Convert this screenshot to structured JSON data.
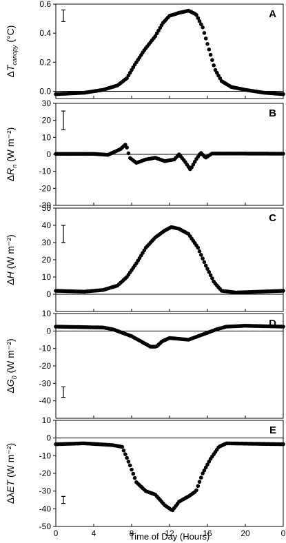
{
  "chart_data": [
    {
      "type": "scatter",
      "panel_label": "A",
      "ylabel": {
        "prefix": "Δ",
        "symbol": "T",
        "sub": "canopy",
        "unit": " (°C)"
      },
      "ylim": [
        -0.05,
        0.6
      ],
      "yticks": [
        "0.0",
        "0.2",
        "0.4",
        "0.6"
      ],
      "ytick_values": [
        0,
        0.2,
        0.4,
        0.6
      ],
      "error_bar": {
        "x": 0.8,
        "center": 0.52,
        "half": 0.04
      },
      "series": [
        {
          "x_range": [
            0,
            24
          ],
          "keypoints": [
            [
              0,
              -0.02
            ],
            [
              3,
              -0.01
            ],
            [
              5,
              0.01
            ],
            [
              6.5,
              0.04
            ],
            [
              7.5,
              0.09
            ],
            [
              8.3,
              0.18
            ],
            [
              9.3,
              0.28
            ],
            [
              10.5,
              0.38
            ],
            [
              11.3,
              0.47
            ],
            [
              12,
              0.52
            ],
            [
              13,
              0.54
            ],
            [
              14,
              0.555
            ],
            [
              14.8,
              0.53
            ],
            [
              15.5,
              0.44
            ],
            [
              16.2,
              0.28
            ],
            [
              16.8,
              0.15
            ],
            [
              17.5,
              0.07
            ],
            [
              18.5,
              0.03
            ],
            [
              20,
              0.01
            ],
            [
              22,
              -0.01
            ],
            [
              24,
              -0.02
            ]
          ]
        }
      ]
    },
    {
      "type": "scatter",
      "panel_label": "B",
      "ylabel": {
        "prefix": "Δ",
        "symbol": "R",
        "sub": "n",
        "unit": " (W m⁻²)"
      },
      "ylim": [
        -30,
        30
      ],
      "yticks": [
        "-30",
        "-20",
        "-10",
        "0",
        "10",
        "20",
        "30"
      ],
      "ytick_values": [
        -30,
        -20,
        -10,
        0,
        10,
        20,
        30
      ],
      "error_bar": {
        "x": 0.8,
        "center": 20,
        "half": 5.5
      },
      "series": [
        {
          "x_range": [
            0,
            24
          ],
          "keypoints": [
            [
              0,
              0.3
            ],
            [
              4,
              0.3
            ],
            [
              5.5,
              -0.3
            ],
            [
              6,
              1
            ],
            [
              6.8,
              3
            ],
            [
              7.4,
              6
            ],
            [
              7.8,
              -2
            ],
            [
              8.5,
              -5
            ],
            [
              9.5,
              -3
            ],
            [
              10.5,
              -2
            ],
            [
              11.5,
              -4
            ],
            [
              12.5,
              -3
            ],
            [
              13,
              0
            ],
            [
              13.6,
              -4
            ],
            [
              14.2,
              -9
            ],
            [
              14.8,
              -3
            ],
            [
              15.3,
              1
            ],
            [
              15.8,
              -2
            ],
            [
              16.5,
              0.5
            ],
            [
              18,
              0.5
            ],
            [
              24,
              0.4
            ]
          ]
        }
      ]
    },
    {
      "type": "scatter",
      "panel_label": "C",
      "ylabel": {
        "prefix": "Δ",
        "symbol": "H",
        "sub": "",
        "unit": " (W m⁻²)"
      },
      "ylim": [
        -10,
        50
      ],
      "yticks": [
        "0",
        "10",
        "20",
        "30",
        "40",
        "50"
      ],
      "ytick_values": [
        0,
        10,
        20,
        30,
        40,
        50
      ],
      "error_bar": {
        "x": 0.8,
        "center": 35,
        "half": 5
      },
      "series": [
        {
          "x_range": [
            0,
            24
          ],
          "keypoints": [
            [
              0,
              2
            ],
            [
              3,
              1.5
            ],
            [
              5,
              2.5
            ],
            [
              6.5,
              5
            ],
            [
              7.5,
              10
            ],
            [
              8.5,
              18
            ],
            [
              9.5,
              27
            ],
            [
              10.5,
              33
            ],
            [
              11.5,
              37
            ],
            [
              12.2,
              39
            ],
            [
              13,
              38
            ],
            [
              14,
              35
            ],
            [
              15,
              27
            ],
            [
              15.8,
              17
            ],
            [
              16.7,
              7
            ],
            [
              17.5,
              2
            ],
            [
              19,
              1
            ],
            [
              24,
              2
            ]
          ]
        }
      ]
    },
    {
      "type": "scatter",
      "panel_label": "D",
      "ylabel": {
        "prefix": "Δ",
        "symbol": "G",
        "sub": "0",
        "unit": " (W m⁻²)"
      },
      "ylim": [
        -50,
        10
      ],
      "yticks": [
        "-40",
        "-30",
        "-20",
        "-10",
        "0",
        "10"
      ],
      "ytick_values": [
        -40,
        -30,
        -20,
        -10,
        0,
        10
      ],
      "error_bar": {
        "x": 0.8,
        "center": -35,
        "half": 3
      },
      "series": [
        {
          "x_range": [
            0,
            24
          ],
          "keypoints": [
            [
              0,
              2.5
            ],
            [
              5,
              2
            ],
            [
              6,
              1
            ],
            [
              7,
              -1
            ],
            [
              8,
              -3
            ],
            [
              9,
              -6
            ],
            [
              10,
              -9
            ],
            [
              10.6,
              -9
            ],
            [
              11.2,
              -6
            ],
            [
              12,
              -4
            ],
            [
              13,
              -4.5
            ],
            [
              14,
              -5
            ],
            [
              15,
              -3
            ],
            [
              16,
              -1
            ],
            [
              17,
              1
            ],
            [
              18,
              2.5
            ],
            [
              20,
              3
            ],
            [
              24,
              2.5
            ]
          ]
        }
      ]
    },
    {
      "type": "scatter",
      "panel_label": "E",
      "ylabel": {
        "prefix": "Δλ",
        "symbol": "ET",
        "sub": "",
        "unit": " (W m⁻²)"
      },
      "ylim": [
        -50,
        10
      ],
      "yticks": [
        "-50",
        "-40",
        "-30",
        "-20",
        "-10",
        "0",
        "10"
      ],
      "ytick_values": [
        -50,
        -40,
        -30,
        -20,
        -10,
        0,
        10
      ],
      "error_bar": {
        "x": 0.8,
        "center": -35,
        "half": 2
      },
      "series": [
        {
          "x_range": [
            0,
            24
          ],
          "keypoints": [
            [
              0,
              -3.5
            ],
            [
              3,
              -3
            ],
            [
              6,
              -4
            ],
            [
              7,
              -5
            ],
            [
              7.8,
              -15
            ],
            [
              8.5,
              -25
            ],
            [
              9.5,
              -30
            ],
            [
              10.5,
              -32
            ],
            [
              11.5,
              -38
            ],
            [
              12.3,
              -41
            ],
            [
              13,
              -36
            ],
            [
              14,
              -33
            ],
            [
              14.8,
              -30
            ],
            [
              15.5,
              -20
            ],
            [
              16.3,
              -12
            ],
            [
              17.2,
              -5
            ],
            [
              18,
              -3
            ],
            [
              24,
              -3.5
            ]
          ]
        }
      ]
    }
  ],
  "x_axis": {
    "label": "Time of Day (Hours)",
    "ticks": [
      "0",
      "4",
      "8",
      "12",
      "16",
      "20",
      "0"
    ],
    "tick_positions": [
      0,
      4,
      8,
      12,
      16,
      20,
      24
    ],
    "range": [
      0,
      24
    ]
  }
}
